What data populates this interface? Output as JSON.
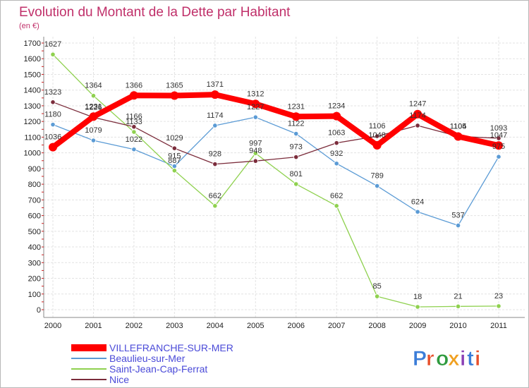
{
  "chart_data": {
    "type": "line",
    "title": "Evolution du Montant de la Dette par Habitant",
    "subtitle": "(en €)",
    "categories": [
      "2000",
      "2001",
      "2002",
      "2003",
      "2004",
      "2005",
      "2006",
      "2007",
      "2008",
      "2009",
      "2010",
      "2011"
    ],
    "ylim": [
      0,
      1700
    ],
    "yticks": [
      0,
      100,
      200,
      300,
      400,
      500,
      600,
      700,
      800,
      900,
      1000,
      1100,
      1200,
      1300,
      1400,
      1500,
      1600,
      1700
    ],
    "grid": true,
    "legend_position": "bottom-left",
    "series": [
      {
        "name": "VILLEFRANCHE-SUR-MER",
        "color": "#ff0000",
        "emphasis": true,
        "values": [
          1036,
          1231,
          1366,
          1365,
          1371,
          1312,
          1231,
          1234,
          1048,
          1247,
          1104,
          1047
        ]
      },
      {
        "name": "Beaulieu-sur-Mer",
        "color": "#5b9bd5",
        "values": [
          1180,
          1079,
          1022,
          915,
          1174,
          1227,
          1122,
          932,
          789,
          624,
          537,
          975
        ]
      },
      {
        "name": "Saint-Jean-Cap-Ferrat",
        "color": "#8fd14f",
        "values": [
          1627,
          1364,
          1133,
          887,
          662,
          997,
          801,
          662,
          85,
          18,
          21,
          23
        ]
      },
      {
        "name": "Nice",
        "color": "#7b2c3b",
        "values": [
          1323,
          1226,
          1166,
          1029,
          928,
          948,
          973,
          1063,
          1106,
          1174,
          1105,
          1093
        ]
      }
    ]
  },
  "logo": {
    "text": "Proxiti",
    "letter_colors": [
      "#3b7dd8",
      "#e8502b",
      "#2f9a3e",
      "#f0a020",
      "#8a3fb5",
      "#3b7dd8",
      "#e8502b"
    ]
  }
}
